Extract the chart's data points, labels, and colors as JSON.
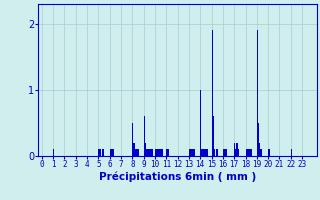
{
  "xlabel": "Précipitations 6min ( mm )",
  "bar_color": "#0000cc",
  "background_color": "#d0eeee",
  "grid_color": "#aacccc",
  "axis_color": "#0000cc",
  "tick_label_color": "#0000cc",
  "ylim": [
    0,
    2.3
  ],
  "yticks": [
    0,
    1,
    2
  ],
  "ytick_labels": [
    "0",
    "1",
    "2"
  ],
  "num_bars": 240,
  "xlim_left": -3,
  "xlim_right": 243,
  "values": [
    0,
    0,
    0,
    0,
    0,
    0,
    0,
    0,
    0,
    0,
    0.1,
    0,
    0,
    0,
    0,
    0,
    0,
    0,
    0,
    0,
    0,
    0,
    0,
    0,
    0,
    0,
    0,
    0,
    0,
    0,
    0,
    0,
    0,
    0,
    0,
    0,
    0,
    0,
    0,
    0,
    0,
    0,
    0,
    0,
    0,
    0,
    0,
    0,
    0,
    0,
    0.1,
    0.1,
    0,
    0.1,
    0.1,
    0,
    0,
    0,
    0,
    0,
    0.1,
    0.1,
    0.1,
    0.1,
    0,
    0,
    0,
    0,
    0,
    0,
    0,
    0,
    0,
    0,
    0,
    0,
    0,
    0,
    0,
    0,
    0.5,
    0.2,
    0.1,
    0.1,
    0.1,
    0.1,
    0,
    0,
    0,
    0,
    0.6,
    0.2,
    0.1,
    0.1,
    0.1,
    0.1,
    0.1,
    0.1,
    0,
    0,
    0.1,
    0.1,
    0.1,
    0.1,
    0.1,
    0.1,
    0.1,
    0,
    0,
    0,
    0.1,
    0.1,
    0,
    0,
    0,
    0,
    0,
    0,
    0,
    0,
    0,
    0,
    0,
    0,
    0,
    0,
    0,
    0,
    0,
    0,
    0.1,
    0.1,
    0.1,
    0.1,
    0.1,
    0,
    0,
    0,
    0,
    0,
    1.0,
    0.1,
    0.1,
    0.1,
    0.1,
    0.1,
    0.1,
    0,
    0,
    0,
    1.9,
    0.6,
    0.1,
    0,
    0.1,
    0.1,
    0,
    0,
    0,
    0,
    0.1,
    0.1,
    0.1,
    0.1,
    0,
    0,
    0,
    0,
    0,
    0,
    0.2,
    0.1,
    0.2,
    0.1,
    0,
    0,
    0,
    0,
    0,
    0,
    0.1,
    0.1,
    0.1,
    0.1,
    0.1,
    0.1,
    0,
    0,
    0,
    0,
    1.9,
    0.5,
    0.2,
    0.1,
    0.1,
    0,
    0,
    0,
    0,
    0,
    0.1,
    0.1,
    0,
    0,
    0,
    0,
    0,
    0,
    0,
    0,
    0,
    0,
    0,
    0,
    0,
    0,
    0,
    0,
    0,
    0,
    0.1,
    0,
    0,
    0,
    0,
    0,
    0,
    0,
    0,
    0,
    0,
    0,
    0,
    0,
    0,
    0,
    0,
    0,
    0,
    0
  ]
}
